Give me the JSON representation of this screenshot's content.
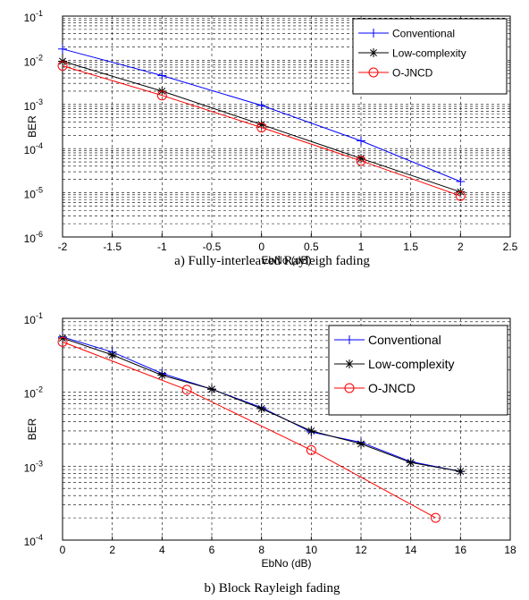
{
  "chart_data": [
    {
      "type": "line",
      "caption": "a) Fully-interleaved Rayleigh fading",
      "xlabel": "EbNo (dB)",
      "ylabel": "BER",
      "xlim": [
        -2,
        2.5
      ],
      "ylim": [
        1e-06,
        0.1
      ],
      "yscale": "log",
      "grid": "on",
      "legend": "top-right",
      "xticks": [
        "-2",
        "-1.5",
        "-1",
        "-0.5",
        "0",
        "0.5",
        "1",
        "1.5",
        "2",
        "2.5"
      ],
      "yticks": [
        {
          "b": "10",
          "e": "-6"
        },
        {
          "b": "10",
          "e": "-5"
        },
        {
          "b": "10",
          "e": "-4"
        },
        {
          "b": "10",
          "e": "-3"
        },
        {
          "b": "10",
          "e": "-2"
        },
        {
          "b": "10",
          "e": "-1"
        }
      ],
      "series": [
        {
          "name": "Conventional",
          "marker": "plus",
          "color": "#0000ff",
          "x": [
            -2,
            -1,
            0,
            1,
            2
          ],
          "y": [
            0.018,
            0.0045,
            0.00095,
            0.00015,
            1.8e-05
          ]
        },
        {
          "name": "Low-complexity",
          "marker": "star",
          "color": "#000000",
          "x": [
            -2,
            -1,
            0,
            1,
            2
          ],
          "y": [
            0.0095,
            0.002,
            0.00035,
            6e-05,
            1.05e-05
          ]
        },
        {
          "name": "O-JNCD",
          "marker": "circle",
          "color": "#ff0000",
          "x": [
            -2,
            -1,
            0,
            1,
            2
          ],
          "y": [
            0.0075,
            0.0016,
            0.0003,
            5.3e-05,
            8.5e-06
          ]
        }
      ]
    },
    {
      "type": "line",
      "caption": "b) Block Rayleigh fading",
      "xlabel": "EbNo (dB)",
      "ylabel": "BER",
      "xlim": [
        0,
        18
      ],
      "ylim": [
        0.0001,
        0.1
      ],
      "yscale": "log",
      "grid": "on",
      "legend": "top-right",
      "xticks": [
        "0",
        "2",
        "4",
        "6",
        "8",
        "10",
        "12",
        "14",
        "16",
        "18"
      ],
      "yticks": [
        {
          "b": "10",
          "e": "-4"
        },
        {
          "b": "10",
          "e": "-3"
        },
        {
          "b": "10",
          "e": "-2"
        },
        {
          "b": "10",
          "e": "-1"
        }
      ],
      "series": [
        {
          "name": "Conventional",
          "marker": "plus",
          "color": "#0000ff",
          "x": [
            0,
            2,
            4,
            6,
            8,
            10,
            12,
            14,
            16
          ],
          "y": [
            0.056,
            0.035,
            0.018,
            0.011,
            0.0062,
            0.0029,
            0.0021,
            0.00115,
            0.00085
          ]
        },
        {
          "name": "Low-complexity",
          "marker": "star",
          "color": "#000000",
          "x": [
            0,
            2,
            4,
            6,
            8,
            10,
            12,
            14,
            16
          ],
          "y": [
            0.054,
            0.032,
            0.017,
            0.011,
            0.006,
            0.003,
            0.002,
            0.00112,
            0.00085
          ]
        },
        {
          "name": "O-JNCD",
          "marker": "circle",
          "color": "#ff0000",
          "x": [
            0,
            5,
            10,
            15
          ],
          "y": [
            0.048,
            0.0108,
            0.00165,
            0.0002
          ]
        }
      ]
    }
  ]
}
